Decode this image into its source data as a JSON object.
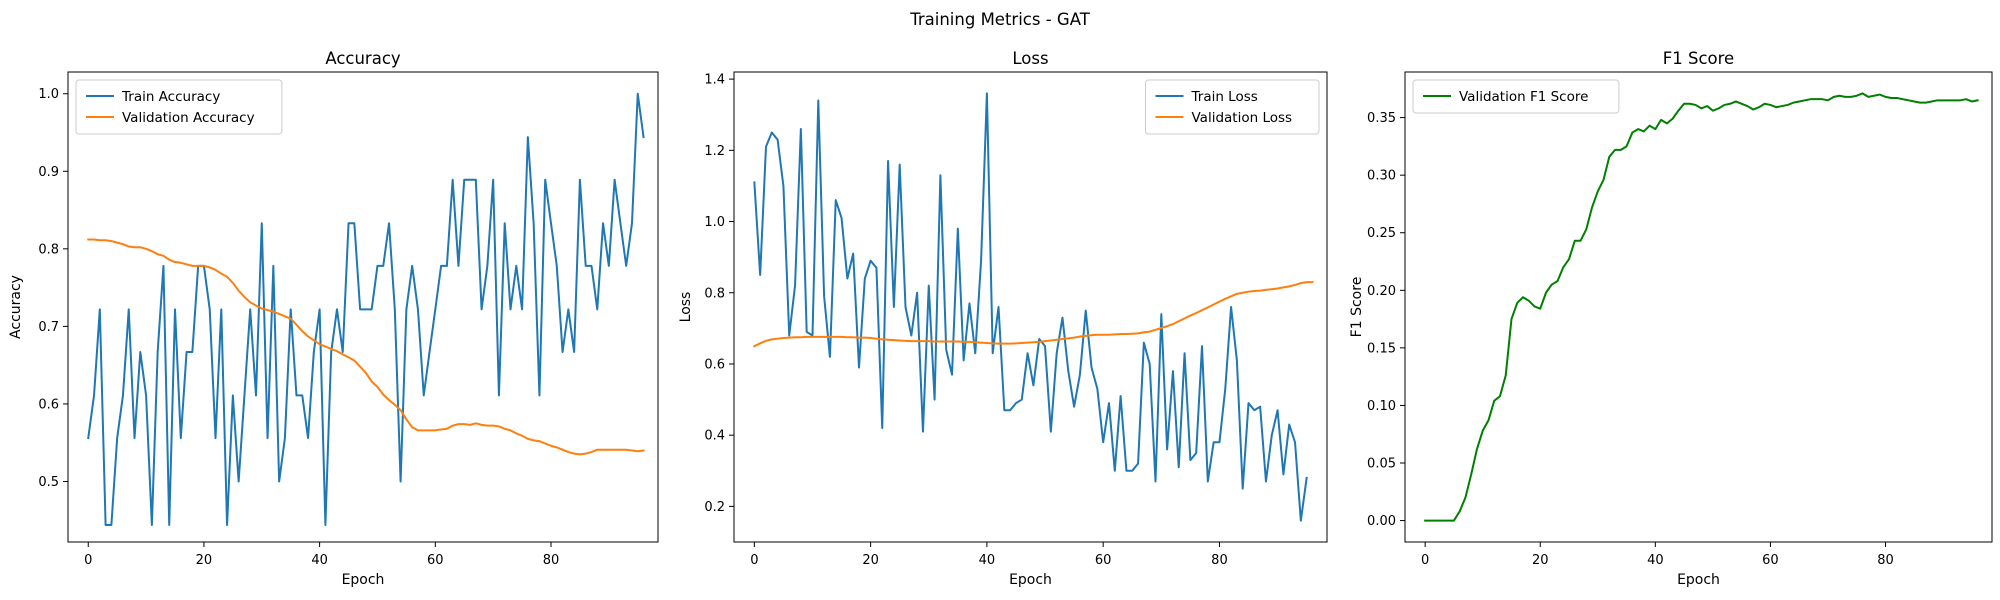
{
  "suptitle": "Training Metrics - GAT",
  "chart_data": [
    {
      "type": "line",
      "title": "Accuracy",
      "xlabel": "Epoch",
      "ylabel": "Accuracy",
      "xlim": [
        -3.5,
        98.5
      ],
      "ylim": [
        0.422,
        1.028
      ],
      "xticks": [
        0,
        20,
        40,
        60,
        80
      ],
      "xtick_labels": [
        "0",
        "20",
        "40",
        "60",
        "80"
      ],
      "yticks": [
        0.5,
        0.6,
        0.7,
        0.8,
        0.9,
        1.0
      ],
      "ytick_labels": [
        "0.5",
        "0.6",
        "0.7",
        "0.8",
        "0.9",
        "1.0"
      ],
      "legend_position": "upper-left",
      "series": [
        {
          "name": "Train Accuracy",
          "color": "#1f77b4",
          "x_start": 0,
          "values": [
            0.556,
            0.611,
            0.722,
            0.444,
            0.444,
            0.556,
            0.611,
            0.722,
            0.556,
            0.667,
            0.611,
            0.444,
            0.667,
            0.778,
            0.444,
            0.722,
            0.556,
            0.667,
            0.667,
            0.778,
            0.778,
            0.722,
            0.556,
            0.722,
            0.444,
            0.611,
            0.5,
            0.611,
            0.722,
            0.611,
            0.833,
            0.556,
            0.778,
            0.5,
            0.556,
            0.722,
            0.611,
            0.611,
            0.556,
            0.667,
            0.722,
            0.444,
            0.667,
            0.722,
            0.667,
            0.833,
            0.833,
            0.722,
            0.722,
            0.722,
            0.778,
            0.778,
            0.833,
            0.722,
            0.5,
            0.722,
            0.778,
            0.722,
            0.611,
            0.667,
            0.722,
            0.778,
            0.778,
            0.889,
            0.778,
            0.889,
            0.889,
            0.889,
            0.722,
            0.778,
            0.889,
            0.611,
            0.833,
            0.722,
            0.778,
            0.722,
            0.944,
            0.833,
            0.611,
            0.889,
            0.833,
            0.778,
            0.667,
            0.722,
            0.667,
            0.889,
            0.778,
            0.778,
            0.722,
            0.833,
            0.778,
            0.889,
            0.833,
            0.778,
            0.833,
            1.0,
            0.944
          ]
        },
        {
          "name": "Validation Accuracy",
          "color": "#ff7f0e",
          "x_start": 0,
          "values": [
            0.812,
            0.812,
            0.811,
            0.811,
            0.81,
            0.808,
            0.806,
            0.803,
            0.802,
            0.802,
            0.8,
            0.797,
            0.793,
            0.791,
            0.786,
            0.783,
            0.782,
            0.78,
            0.778,
            0.778,
            0.778,
            0.776,
            0.773,
            0.768,
            0.764,
            0.756,
            0.746,
            0.738,
            0.731,
            0.727,
            0.723,
            0.721,
            0.719,
            0.716,
            0.713,
            0.71,
            0.702,
            0.694,
            0.687,
            0.682,
            0.677,
            0.674,
            0.671,
            0.668,
            0.664,
            0.66,
            0.656,
            0.648,
            0.64,
            0.629,
            0.622,
            0.612,
            0.605,
            0.599,
            0.592,
            0.58,
            0.57,
            0.566,
            0.566,
            0.566,
            0.566,
            0.567,
            0.568,
            0.572,
            0.574,
            0.574,
            0.573,
            0.575,
            0.573,
            0.572,
            0.572,
            0.571,
            0.568,
            0.566,
            0.562,
            0.559,
            0.555,
            0.553,
            0.552,
            0.549,
            0.546,
            0.544,
            0.541,
            0.538,
            0.536,
            0.535,
            0.536,
            0.538,
            0.541,
            0.541,
            0.541,
            0.541,
            0.541,
            0.541,
            0.54,
            0.539,
            0.54
          ]
        }
      ]
    },
    {
      "type": "line",
      "title": "Loss",
      "xlabel": "Epoch",
      "ylabel": "Loss",
      "xlim": [
        -3.5,
        98.5
      ],
      "ylim": [
        0.1,
        1.42
      ],
      "xticks": [
        0,
        20,
        40,
        60,
        80
      ],
      "xtick_labels": [
        "0",
        "20",
        "40",
        "60",
        "80"
      ],
      "yticks": [
        0.2,
        0.4,
        0.6,
        0.8,
        1.0,
        1.2,
        1.4
      ],
      "ytick_labels": [
        "0.2",
        "0.4",
        "0.6",
        "0.8",
        "1.0",
        "1.2",
        "1.4"
      ],
      "legend_position": "upper-right",
      "series": [
        {
          "name": "Train Loss",
          "color": "#1f77b4",
          "x_start": 0,
          "values": [
            1.11,
            0.85,
            1.21,
            1.25,
            1.23,
            1.1,
            0.68,
            0.82,
            1.26,
            0.69,
            0.68,
            1.34,
            0.79,
            0.62,
            1.06,
            1.01,
            0.84,
            0.91,
            0.59,
            0.84,
            0.89,
            0.87,
            0.42,
            1.17,
            0.76,
            1.16,
            0.76,
            0.68,
            0.8,
            0.41,
            0.82,
            0.5,
            1.13,
            0.64,
            0.57,
            0.98,
            0.61,
            0.77,
            0.63,
            0.89,
            1.36,
            0.63,
            0.76,
            0.47,
            0.47,
            0.49,
            0.5,
            0.63,
            0.54,
            0.67,
            0.65,
            0.41,
            0.63,
            0.73,
            0.58,
            0.48,
            0.57,
            0.75,
            0.59,
            0.53,
            0.38,
            0.49,
            0.3,
            0.51,
            0.3,
            0.3,
            0.32,
            0.66,
            0.6,
            0.27,
            0.74,
            0.36,
            0.58,
            0.31,
            0.63,
            0.33,
            0.35,
            0.65,
            0.27,
            0.38,
            0.38,
            0.53,
            0.76,
            0.61,
            0.25,
            0.49,
            0.47,
            0.48,
            0.27,
            0.4,
            0.47,
            0.29,
            0.43,
            0.38,
            0.16,
            0.28
          ]
        },
        {
          "name": "Validation Loss",
          "color": "#ff7f0e",
          "x_start": 0,
          "values": [
            0.65,
            0.658,
            0.665,
            0.669,
            0.671,
            0.673,
            0.674,
            0.675,
            0.675,
            0.676,
            0.676,
            0.676,
            0.676,
            0.676,
            0.676,
            0.676,
            0.675,
            0.675,
            0.674,
            0.674,
            0.673,
            0.671,
            0.669,
            0.668,
            0.667,
            0.666,
            0.665,
            0.664,
            0.664,
            0.664,
            0.664,
            0.663,
            0.663,
            0.663,
            0.663,
            0.663,
            0.662,
            0.662,
            0.661,
            0.66,
            0.659,
            0.658,
            0.657,
            0.657,
            0.657,
            0.658,
            0.659,
            0.66,
            0.661,
            0.662,
            0.664,
            0.666,
            0.668,
            0.67,
            0.672,
            0.674,
            0.677,
            0.679,
            0.681,
            0.682,
            0.682,
            0.682,
            0.683,
            0.684,
            0.684,
            0.685,
            0.686,
            0.689,
            0.691,
            0.696,
            0.701,
            0.706,
            0.712,
            0.72,
            0.728,
            0.736,
            0.743,
            0.751,
            0.759,
            0.767,
            0.775,
            0.783,
            0.79,
            0.797,
            0.8,
            0.803,
            0.805,
            0.806,
            0.808,
            0.81,
            0.812,
            0.815,
            0.818,
            0.822,
            0.827,
            0.83,
            0.83
          ]
        }
      ]
    },
    {
      "type": "line",
      "title": "F1 Score",
      "xlabel": "Epoch",
      "ylabel": "F1 Score",
      "xlim": [
        -3.5,
        98.5
      ],
      "ylim": [
        -0.0186,
        0.3896
      ],
      "xticks": [
        0,
        20,
        40,
        60,
        80
      ],
      "xtick_labels": [
        "0",
        "20",
        "40",
        "60",
        "80"
      ],
      "yticks": [
        0.0,
        0.05,
        0.1,
        0.15,
        0.2,
        0.25,
        0.3,
        0.35
      ],
      "ytick_labels": [
        "0.00",
        "0.05",
        "0.10",
        "0.15",
        "0.20",
        "0.25",
        "0.30",
        "0.35"
      ],
      "legend_position": "upper-left",
      "series": [
        {
          "name": "Validation F1 Score",
          "color": "#008000",
          "x_start": 0,
          "values": [
            0.0,
            0.0,
            0.0,
            0.0,
            0.0,
            0.0,
            0.008,
            0.02,
            0.04,
            0.062,
            0.078,
            0.087,
            0.104,
            0.108,
            0.126,
            0.175,
            0.189,
            0.194,
            0.191,
            0.186,
            0.184,
            0.198,
            0.205,
            0.208,
            0.22,
            0.227,
            0.243,
            0.243,
            0.253,
            0.272,
            0.286,
            0.296,
            0.316,
            0.322,
            0.322,
            0.325,
            0.337,
            0.34,
            0.338,
            0.343,
            0.34,
            0.348,
            0.345,
            0.349,
            0.356,
            0.362,
            0.362,
            0.361,
            0.358,
            0.36,
            0.356,
            0.358,
            0.361,
            0.362,
            0.364,
            0.362,
            0.36,
            0.357,
            0.359,
            0.362,
            0.361,
            0.359,
            0.36,
            0.361,
            0.363,
            0.364,
            0.365,
            0.366,
            0.366,
            0.366,
            0.365,
            0.368,
            0.369,
            0.368,
            0.368,
            0.369,
            0.371,
            0.368,
            0.369,
            0.37,
            0.368,
            0.367,
            0.367,
            0.366,
            0.365,
            0.364,
            0.363,
            0.363,
            0.364,
            0.365,
            0.365,
            0.365,
            0.365,
            0.365,
            0.366,
            0.364,
            0.365
          ]
        }
      ]
    }
  ]
}
